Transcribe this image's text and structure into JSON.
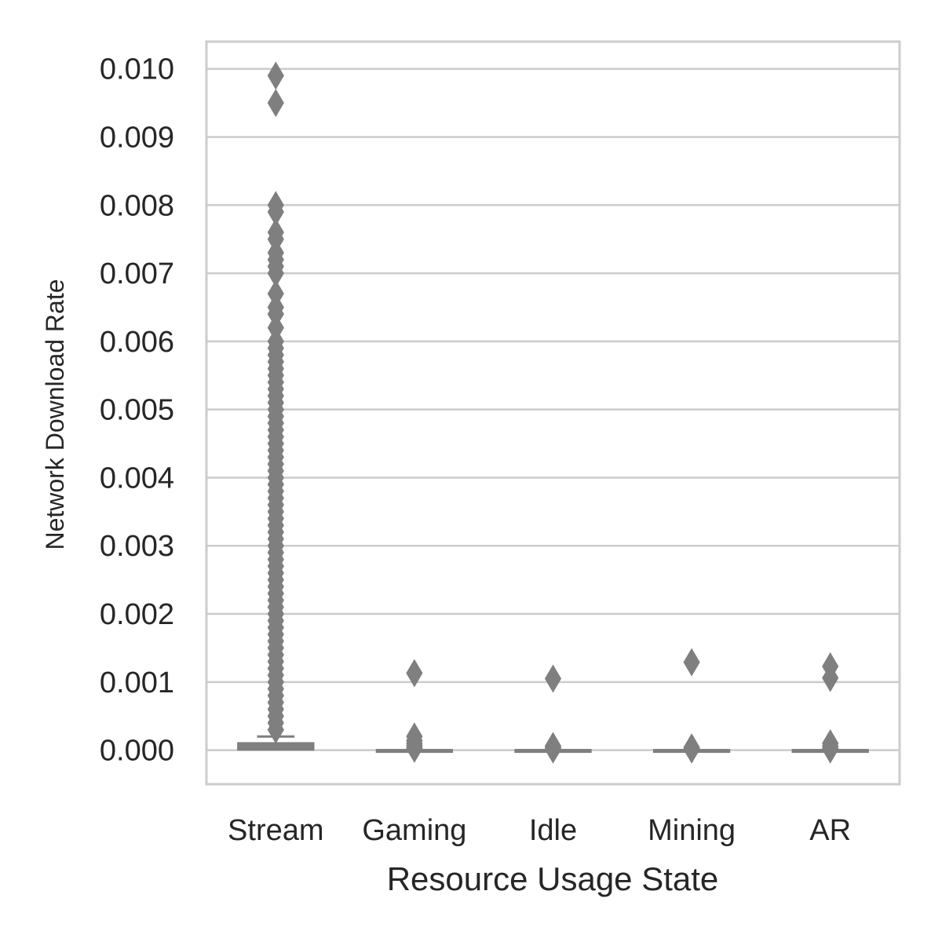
{
  "chart_data": {
    "type": "boxplot",
    "xlabel": "Resource Usage State",
    "ylabel": "Network Download Rate",
    "categories": [
      "Stream",
      "Gaming",
      "Idle",
      "Mining",
      "AR"
    ],
    "yticks": [
      "0.000",
      "0.001",
      "0.002",
      "0.003",
      "0.004",
      "0.005",
      "0.006",
      "0.007",
      "0.008",
      "0.009",
      "0.010"
    ],
    "ylim": [
      -0.0005,
      0.0104
    ],
    "grid": true,
    "colors": {
      "box": "#7f7f7f",
      "grid": "#cccccc",
      "frame": "#cccccc",
      "text": "#262626"
    },
    "boxes": [
      {
        "category": "Stream",
        "q1": 1e-05,
        "median": 3e-05,
        "q3": 0.0001,
        "whisker_low": 0.0,
        "whisker_high": 0.0002,
        "outliers": [
          0.0099,
          0.0095,
          0.008,
          0.0079,
          0.0076,
          0.0075,
          0.0073,
          0.0072,
          0.0071,
          0.007,
          0.0067,
          0.0065,
          0.0064,
          0.0062,
          0.006,
          0.0059,
          0.0058,
          0.0057,
          0.0056,
          0.0055,
          0.0054,
          0.0053,
          0.0052,
          0.0051,
          0.005,
          0.0049,
          0.0048,
          0.0047,
          0.0046,
          0.0045,
          0.0044,
          0.0043,
          0.0042,
          0.0041,
          0.004,
          0.0039,
          0.0038,
          0.0037,
          0.0036,
          0.0035,
          0.0034,
          0.0033,
          0.0032,
          0.0031,
          0.003,
          0.0029,
          0.0028,
          0.0027,
          0.0026,
          0.0025,
          0.0024,
          0.0023,
          0.0022,
          0.0021,
          0.002,
          0.0019,
          0.0018,
          0.0017,
          0.0016,
          0.0015,
          0.0014,
          0.0013,
          0.0012,
          0.0011,
          0.001,
          0.0009,
          0.0008,
          0.0007,
          0.0006,
          0.0005,
          0.0004,
          0.0003
        ]
      },
      {
        "category": "Gaming",
        "q1": 0.0,
        "median": 0.0,
        "q3": 0.0,
        "whisker_low": 0.0,
        "whisker_high": 0.0,
        "outliers": [
          0.00113,
          0.0002,
          0.00014,
          0.0001,
          7e-05,
          4e-05,
          2e-05
        ]
      },
      {
        "category": "Idle",
        "q1": 0.0,
        "median": 0.0,
        "q3": 0.0,
        "whisker_low": 0.0,
        "whisker_high": 0.0,
        "outliers": [
          0.00105,
          6e-05,
          4e-05,
          2e-05,
          1e-05
        ]
      },
      {
        "category": "Mining",
        "q1": 0.0,
        "median": 0.0,
        "q3": 0.0,
        "whisker_low": 0.0,
        "whisker_high": 0.0,
        "outliers": [
          0.00129,
          4e-05,
          2e-05,
          1e-05
        ]
      },
      {
        "category": "AR",
        "q1": 0.0,
        "median": 0.0,
        "q3": 0.0,
        "whisker_low": 0.0,
        "whisker_high": 0.0,
        "outliers": [
          0.00123,
          0.00106,
          0.0001,
          6e-05,
          3e-05,
          1e-05
        ]
      }
    ]
  }
}
